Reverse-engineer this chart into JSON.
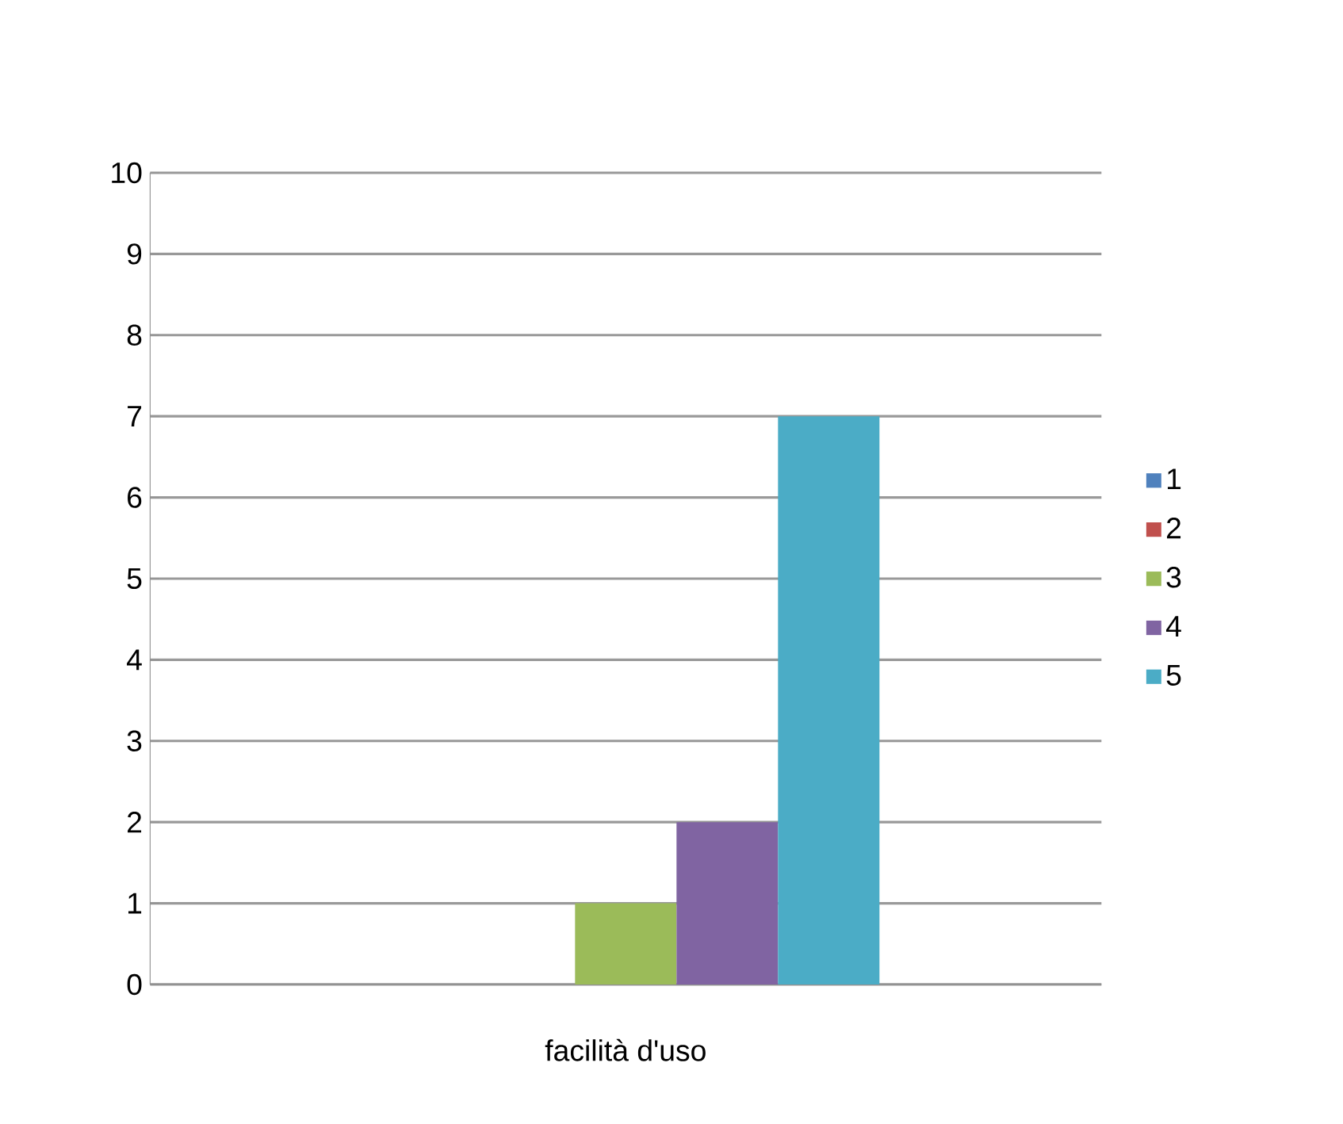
{
  "chart_data": {
    "type": "bar",
    "categories": [
      "facilità d'uso"
    ],
    "series": [
      {
        "name": "1",
        "color": "#4f81bd",
        "values": [
          0
        ]
      },
      {
        "name": "2",
        "color": "#c0504d",
        "values": [
          0
        ]
      },
      {
        "name": "3",
        "color": "#9bbb59",
        "values": [
          1
        ]
      },
      {
        "name": "4",
        "color": "#8064a2",
        "values": [
          2
        ]
      },
      {
        "name": "5",
        "color": "#4bacc6",
        "values": [
          7
        ]
      }
    ],
    "ylim": [
      0,
      10
    ],
    "yticks": [
      0,
      1,
      2,
      3,
      4,
      5,
      6,
      7,
      8,
      9,
      10
    ],
    "grid": "y",
    "legend": "right"
  }
}
